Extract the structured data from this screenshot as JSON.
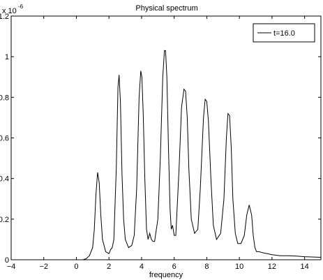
{
  "chart_data": {
    "type": "line",
    "title": "Physical spectrum",
    "xlabel": "frequency",
    "ylabel": "",
    "xlim": [
      -4,
      15
    ],
    "ylim": [
      0,
      1.2
    ],
    "y_exponent_label": "x 10",
    "y_exponent_power": "-6",
    "x_ticks": [
      -4,
      -2,
      0,
      2,
      4,
      6,
      8,
      10,
      12,
      14
    ],
    "x_tick_labels": [
      "−4",
      "−2",
      "0",
      "2",
      "4",
      "6",
      "8",
      "10",
      "12",
      "14"
    ],
    "y_ticks": [
      0,
      0.2,
      0.4,
      0.6,
      0.8,
      1,
      1.2
    ],
    "y_tick_labels": [
      "0",
      "0.2",
      "0.4",
      "0.6",
      "0.8",
      "1",
      "1.2"
    ],
    "grid": false,
    "legend_position": "top-right",
    "colors": {
      "line": "#000000",
      "axes": "#000000",
      "background": "#ffffff"
    },
    "series": [
      {
        "name": "t=16.0",
        "x": [
          -4,
          0.4,
          0.6,
          0.8,
          1.0,
          1.1,
          1.2,
          1.3,
          1.4,
          1.5,
          1.6,
          1.8,
          2.0,
          2.1,
          2.2,
          2.3,
          2.45,
          2.55,
          2.62,
          2.7,
          2.8,
          2.9,
          3.0,
          3.2,
          3.4,
          3.55,
          3.7,
          3.85,
          3.95,
          4.02,
          4.1,
          4.2,
          4.3,
          4.4,
          4.5,
          4.6,
          4.7,
          4.8,
          5.0,
          5.15,
          5.3,
          5.4,
          5.47,
          5.55,
          5.65,
          5.75,
          5.82,
          5.9,
          6.0,
          6.1,
          6.3,
          6.45,
          6.6,
          6.7,
          6.8,
          6.9,
          7.05,
          7.25,
          7.45,
          7.6,
          7.8,
          7.9,
          8.0,
          8.1,
          8.25,
          8.4,
          8.6,
          8.85,
          9.05,
          9.2,
          9.3,
          9.4,
          9.5,
          9.6,
          9.75,
          9.9,
          10.1,
          10.3,
          10.45,
          10.6,
          10.75,
          10.85,
          10.95,
          11.05,
          11.2,
          11.4,
          11.7,
          12.0,
          12.5,
          13.0,
          13.5,
          14.0,
          15.0
        ],
        "y": [
          0,
          0,
          0.005,
          0.02,
          0.06,
          0.15,
          0.32,
          0.43,
          0.38,
          0.22,
          0.1,
          0.04,
          0.03,
          0.05,
          0.06,
          0.1,
          0.45,
          0.85,
          0.91,
          0.78,
          0.42,
          0.2,
          0.1,
          0.06,
          0.07,
          0.12,
          0.35,
          0.8,
          0.93,
          0.9,
          0.72,
          0.4,
          0.15,
          0.1,
          0.13,
          0.1,
          0.09,
          0.09,
          0.2,
          0.5,
          0.9,
          1.03,
          1.03,
          0.9,
          0.55,
          0.25,
          0.15,
          0.17,
          0.12,
          0.12,
          0.45,
          0.75,
          0.84,
          0.83,
          0.7,
          0.45,
          0.2,
          0.13,
          0.15,
          0.35,
          0.7,
          0.79,
          0.78,
          0.68,
          0.4,
          0.17,
          0.1,
          0.13,
          0.3,
          0.6,
          0.72,
          0.71,
          0.55,
          0.3,
          0.13,
          0.08,
          0.08,
          0.12,
          0.22,
          0.27,
          0.22,
          0.12,
          0.06,
          0.04,
          0.04,
          0.035,
          0.03,
          0.025,
          0.02,
          0.02,
          0.018,
          0.015,
          0.012
        ]
      }
    ]
  }
}
